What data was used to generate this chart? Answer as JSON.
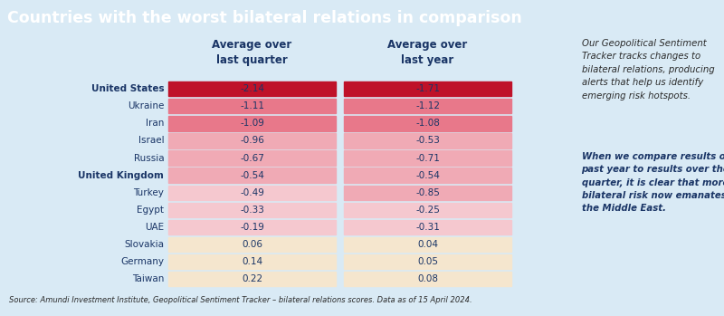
{
  "title": "Countries with the worst bilateral relations in comparison",
  "title_bg": "#29aed4",
  "title_color": "#ffffff",
  "col1_header": "Average over\nlast quarter",
  "col2_header": "Average over\nlast year",
  "countries": [
    "United States",
    "Ukraine",
    "Iran",
    "Israel",
    "Russia",
    "United Kingdom",
    "Turkey",
    "Egypt",
    "UAE",
    "Slovakia",
    "Germany",
    "Taiwan"
  ],
  "col1_values": [
    -2.14,
    -1.11,
    -1.09,
    -0.96,
    -0.67,
    -0.54,
    -0.49,
    -0.33,
    -0.19,
    0.06,
    0.14,
    0.22
  ],
  "col2_values": [
    -1.71,
    -1.12,
    -1.08,
    -0.53,
    -0.71,
    -0.54,
    -0.85,
    -0.25,
    -0.31,
    0.04,
    0.05,
    0.08
  ],
  "bold_rows": [
    0,
    5
  ],
  "source_text": "Source: Amundi Investment Institute, Geopolitical Sentiment Tracker – bilateral relations scores. Data as of 15 April 2024.",
  "annotation1": "Our Geopolitical Sentiment\nTracker tracks changes to\nbilateral relations, producing\nalerts that help us identify\nemerging risk hotspots.",
  "annotation2": "When we compare results of the\npast year to results over the last\nquarter, it is clear that more\nbilateral risk now emanates from\nthe Middle East.",
  "bg_color": "#d9eaf5",
  "negative_strong_color": "#bf1229",
  "negative_mid_color": "#e8788a",
  "negative_light_color": "#f0aab5",
  "negative_very_light_color": "#f5c8cf",
  "positive_color": "#f5e6ce",
  "text_color_dark": "#1a3566",
  "header_color": "#1a3566",
  "ann1_color": "#2a2a2a",
  "ann2_color": "#1a3566"
}
